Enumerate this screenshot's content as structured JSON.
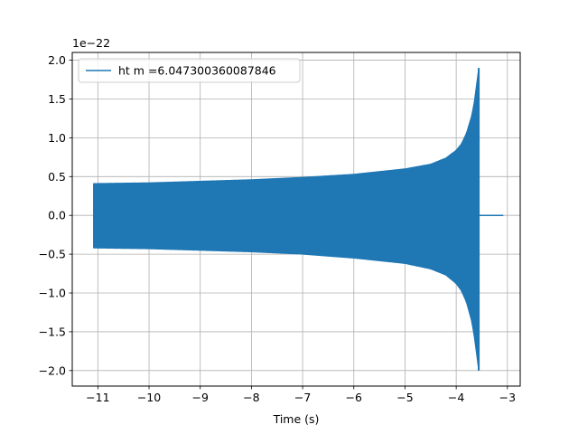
{
  "chart_data": {
    "type": "line",
    "xlabel": "Time (s)",
    "ylabel": "",
    "y_offset_label": "1e−22",
    "xlim": [
      -11.5,
      -2.75
    ],
    "ylim": [
      -2.2,
      2.1
    ],
    "xticks": [
      -11,
      -10,
      -9,
      -8,
      -7,
      -6,
      -5,
      -4,
      -3
    ],
    "yticks": [
      -2.0,
      -1.5,
      -1.0,
      -0.5,
      0.0,
      0.5,
      1.0,
      1.5,
      2.0
    ],
    "xtick_labels": [
      "−11",
      "−10",
      "−9",
      "−8",
      "−7",
      "−6",
      "−5",
      "−4",
      "−3"
    ],
    "ytick_labels": [
      "−2.0",
      "−1.5",
      "−1.0",
      "−0.5",
      "0.0",
      "0.5",
      "1.0",
      "1.5",
      "2.0"
    ],
    "grid": true,
    "legend_position": "top-left",
    "series": [
      {
        "name": "ht m =6.047300360087846",
        "color": "#1f77b4",
        "envelope": {
          "t_start": -11.08,
          "t_peak": -3.56,
          "t_end": -3.08,
          "upper": [
            [
              -11.08,
              0.41
            ],
            [
              -10.0,
              0.42
            ],
            [
              -9.0,
              0.44
            ],
            [
              -8.0,
              0.46
            ],
            [
              -7.0,
              0.49
            ],
            [
              -6.0,
              0.53
            ],
            [
              -5.0,
              0.6
            ],
            [
              -4.5,
              0.66
            ],
            [
              -4.2,
              0.74
            ],
            [
              -4.0,
              0.84
            ],
            [
              -3.9,
              0.92
            ],
            [
              -3.8,
              1.06
            ],
            [
              -3.7,
              1.28
            ],
            [
              -3.65,
              1.45
            ],
            [
              -3.6,
              1.7
            ],
            [
              -3.56,
              1.9
            ]
          ],
          "lower": [
            [
              -11.08,
              -0.42
            ],
            [
              -10.0,
              -0.43
            ],
            [
              -9.0,
              -0.45
            ],
            [
              -8.0,
              -0.47
            ],
            [
              -7.0,
              -0.5
            ],
            [
              -6.0,
              -0.55
            ],
            [
              -5.0,
              -0.62
            ],
            [
              -4.5,
              -0.69
            ],
            [
              -4.2,
              -0.77
            ],
            [
              -4.0,
              -0.88
            ],
            [
              -3.9,
              -0.97
            ],
            [
              -3.8,
              -1.12
            ],
            [
              -3.7,
              -1.36
            ],
            [
              -3.65,
              -1.55
            ],
            [
              -3.6,
              -1.8
            ],
            [
              -3.56,
              -2.0
            ]
          ],
          "ringdown": [
            [
              -3.56,
              0.0
            ],
            [
              -3.08,
              0.0
            ]
          ]
        }
      }
    ]
  }
}
